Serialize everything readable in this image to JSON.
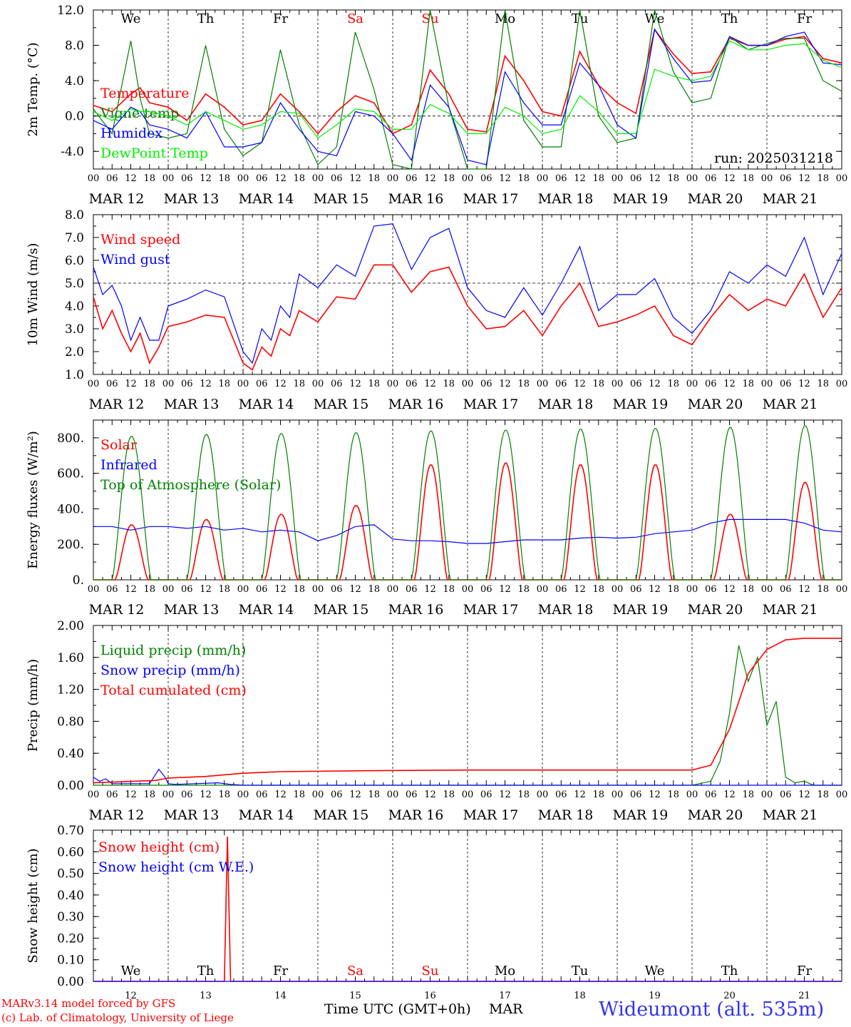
{
  "run_label": "run: 2025031218",
  "hour_ticks": [
    "00",
    "06",
    "12",
    "18"
  ],
  "end_tick": "00",
  "dates": [
    "MAR 12",
    "MAR 13",
    "MAR 14",
    "MAR 15",
    "MAR 16",
    "MAR 17",
    "MAR 18",
    "MAR 19",
    "MAR 20",
    "MAR 21"
  ],
  "weekdays": [
    "We",
    "Th",
    "Fr",
    "Sa",
    "Su",
    "Mo",
    "Tu",
    "We",
    "Th",
    "Fr"
  ],
  "weekday_colors": [
    "#000000",
    "#000000",
    "#000000",
    "#ff0000",
    "#ff0000",
    "#000000",
    "#000000",
    "#000000",
    "#000000",
    "#000000"
  ],
  "day_numbers": [
    "12",
    "13",
    "14",
    "15",
    "16",
    "17",
    "18",
    "19",
    "20",
    "21"
  ],
  "colors": {
    "red": "#ff0000",
    "blue": "#0000ff",
    "green": "#008000",
    "lightgreen": "#00ee00",
    "title": "#3333ee"
  },
  "footer": {
    "model": "MARv3.14 model forced by GFS",
    "copyright": "(c) Lab. of Climatology, University of Liege",
    "time_label": "Time UTC (GMT+0h)",
    "month": "MAR",
    "station": "Wideumont (alt. 535m)"
  },
  "chart_data": [
    {
      "type": "line",
      "ylabel": "2m Temp. (°C)",
      "ylim": [
        -6,
        12
      ],
      "yticks": [
        "12.0",
        "8.0",
        "4.0",
        "0.0",
        "-4.0"
      ],
      "ytick_values": [
        12,
        8,
        4,
        0,
        -4
      ],
      "ref_line": 0,
      "x_unit": "hours since MAR 12 00 UTC",
      "series": [
        {
          "name": "Temperature",
          "color": "#ff0000",
          "x": [
            0,
            6,
            12,
            15,
            18,
            24,
            30,
            36,
            42,
            48,
            54,
            60,
            66,
            72,
            78,
            84,
            90,
            96,
            102,
            108,
            114,
            120,
            126,
            132,
            138,
            144,
            150,
            156,
            162,
            168,
            174,
            180,
            186,
            192,
            198,
            204,
            210,
            216,
            222,
            228,
            234,
            240
          ],
          "y": [
            1.2,
            0.5,
            2.5,
            3.2,
            1.5,
            1.0,
            -0.5,
            2.5,
            1.0,
            -1.0,
            -0.5,
            2.5,
            0.5,
            -2.0,
            0.5,
            2.3,
            1.5,
            -2.0,
            -1.0,
            5.2,
            2.5,
            -1.5,
            -1.8,
            6.8,
            4.0,
            0.5,
            0.0,
            7.3,
            3.5,
            1.5,
            0.3,
            9.8,
            7.0,
            4.8,
            5.0,
            8.8,
            8.0,
            8.0,
            8.7,
            9.0,
            6.5,
            6.0
          ]
        },
        {
          "name": "Vigne temp",
          "color": "#008000",
          "x": [
            0,
            6,
            12,
            15,
            18,
            24,
            30,
            36,
            42,
            48,
            54,
            60,
            66,
            72,
            78,
            84,
            90,
            96,
            102,
            108,
            114,
            120,
            126,
            132,
            138,
            144,
            150,
            156,
            162,
            168,
            174,
            180,
            186,
            192,
            198,
            204,
            210,
            216,
            222,
            228,
            234,
            240
          ],
          "y": [
            0.8,
            -2.0,
            8.5,
            2.0,
            -2.0,
            -2.5,
            -2.0,
            8.0,
            -1.5,
            -4.5,
            -3.0,
            7.5,
            -1.0,
            -5.5,
            -3.5,
            9.5,
            3.0,
            -5.5,
            -6.0,
            12.0,
            1.0,
            -6.0,
            -6.0,
            12.0,
            -0.5,
            -3.5,
            -3.5,
            12.0,
            0.0,
            -3.0,
            -2.5,
            12.0,
            5.0,
            1.5,
            2.0,
            9.0,
            7.5,
            8.2,
            8.8,
            8.8,
            4.0,
            2.8
          ]
        },
        {
          "name": "Humidex",
          "color": "#0000ff",
          "x": [
            0,
            6,
            12,
            15,
            18,
            24,
            30,
            36,
            42,
            48,
            54,
            60,
            66,
            72,
            78,
            84,
            90,
            96,
            102,
            108,
            114,
            120,
            126,
            132,
            138,
            144,
            150,
            156,
            162,
            168,
            174,
            180,
            186,
            192,
            198,
            204,
            210,
            216,
            222,
            228,
            234,
            240
          ],
          "y": [
            -0.5,
            -1.5,
            1.0,
            0.5,
            -1.0,
            -1.5,
            -2.5,
            0.5,
            -3.5,
            -3.5,
            -3.0,
            1.5,
            -1.5,
            -4.0,
            -4.5,
            0.5,
            0.0,
            -2.0,
            -5.0,
            3.5,
            1.0,
            -5.0,
            -5.5,
            5.0,
            1.5,
            -1.0,
            -1.0,
            6.0,
            3.5,
            -1.0,
            -2.5,
            9.8,
            6.5,
            3.8,
            4.0,
            9.0,
            8.0,
            8.0,
            9.0,
            9.5,
            6.0,
            5.8
          ]
        },
        {
          "name": "DewPoint Temp",
          "color": "#00ee00",
          "x": [
            0,
            6,
            12,
            15,
            18,
            24,
            30,
            36,
            42,
            48,
            54,
            60,
            66,
            72,
            78,
            84,
            90,
            96,
            102,
            108,
            114,
            120,
            126,
            132,
            138,
            144,
            150,
            156,
            162,
            168,
            174,
            180,
            186,
            192,
            198,
            204,
            210,
            216,
            222,
            228,
            234,
            240
          ],
          "y": [
            0.5,
            -0.5,
            0.8,
            0.5,
            0.5,
            0.0,
            -1.0,
            0.5,
            -0.5,
            -1.5,
            -1.0,
            0.5,
            0.3,
            -2.5,
            -1.0,
            0.8,
            0.5,
            -1.5,
            -1.5,
            1.3,
            0.3,
            -2.0,
            -2.0,
            1.0,
            0.0,
            -2.0,
            -1.5,
            2.3,
            0.5,
            -2.0,
            -2.0,
            5.3,
            4.5,
            4.0,
            4.5,
            8.5,
            7.5,
            7.5,
            8.0,
            8.2,
            6.3,
            5.5
          ]
        }
      ]
    },
    {
      "type": "line",
      "ylabel": "10m Wind (m/s)",
      "ylim": [
        1,
        8
      ],
      "yticks": [
        "8.0",
        "7.0",
        "6.0",
        "5.0",
        "4.0",
        "3.0",
        "2.0",
        "1.0"
      ],
      "ytick_values": [
        8,
        7,
        6,
        5,
        4,
        3,
        2,
        1
      ],
      "ref_line": 5,
      "x_unit": "hours since MAR 12 00 UTC",
      "series": [
        {
          "name": "Wind speed",
          "color": "#ff0000",
          "x": [
            0,
            3,
            6,
            9,
            12,
            15,
            18,
            21,
            24,
            30,
            36,
            42,
            48,
            51,
            54,
            57,
            60,
            63,
            66,
            72,
            78,
            84,
            90,
            96,
            102,
            108,
            114,
            120,
            126,
            132,
            138,
            144,
            150,
            156,
            162,
            168,
            174,
            180,
            186,
            192,
            198,
            204,
            210,
            216,
            222,
            228,
            234,
            240
          ],
          "y": [
            4.4,
            3.0,
            3.8,
            2.8,
            2.0,
            2.8,
            1.5,
            2.2,
            3.1,
            3.3,
            3.6,
            3.5,
            1.5,
            1.2,
            2.2,
            1.8,
            3.0,
            2.7,
            3.8,
            3.3,
            4.4,
            4.3,
            5.8,
            5.8,
            4.6,
            5.5,
            5.7,
            4.0,
            3.0,
            3.1,
            3.8,
            2.7,
            4.0,
            5.0,
            3.1,
            3.3,
            3.6,
            4.0,
            2.7,
            2.3,
            3.5,
            4.5,
            3.8,
            4.3,
            4.0,
            5.4,
            3.5,
            4.8
          ]
        },
        {
          "name": "Wind gust",
          "color": "#0000ff",
          "x": [
            0,
            3,
            6,
            9,
            12,
            15,
            18,
            21,
            24,
            30,
            36,
            42,
            48,
            51,
            54,
            57,
            60,
            63,
            66,
            72,
            78,
            84,
            90,
            96,
            102,
            108,
            114,
            120,
            126,
            132,
            138,
            144,
            150,
            156,
            162,
            168,
            174,
            180,
            186,
            192,
            198,
            204,
            210,
            216,
            222,
            228,
            234,
            240
          ],
          "y": [
            5.7,
            4.5,
            4.9,
            4.0,
            2.5,
            3.5,
            2.5,
            2.5,
            4.0,
            4.3,
            4.7,
            4.4,
            2.0,
            1.5,
            3.0,
            2.5,
            4.0,
            3.5,
            5.4,
            4.8,
            5.8,
            5.3,
            7.5,
            7.6,
            5.6,
            7.0,
            7.4,
            4.8,
            3.8,
            3.5,
            4.8,
            3.6,
            5.0,
            6.6,
            3.8,
            4.5,
            4.5,
            5.2,
            3.5,
            2.8,
            3.8,
            5.5,
            5.0,
            5.8,
            5.3,
            7.0,
            4.5,
            6.3
          ]
        }
      ]
    },
    {
      "type": "line",
      "ylabel": "Energy fluxes (W/m²)",
      "ylim": [
        0,
        900
      ],
      "yticks": [
        "800.",
        "600.",
        "400.",
        "200.",
        "0."
      ],
      "ytick_values": [
        800,
        600,
        400,
        200,
        0
      ],
      "x_unit": "hours since MAR 12 00 UTC",
      "series": [
        {
          "name": "Solar",
          "color": "#ff0000",
          "daily_peaks": [
            310,
            340,
            370,
            420,
            650,
            660,
            650,
            650,
            370,
            550
          ]
        },
        {
          "name": "Infrared",
          "color": "#0000ff",
          "x": [
            0,
            6,
            12,
            18,
            24,
            30,
            36,
            42,
            48,
            54,
            60,
            66,
            72,
            78,
            84,
            90,
            96,
            102,
            108,
            114,
            120,
            126,
            132,
            138,
            144,
            150,
            156,
            162,
            168,
            174,
            180,
            186,
            192,
            198,
            204,
            210,
            216,
            222,
            228,
            234,
            240
          ],
          "y": [
            300,
            300,
            280,
            300,
            300,
            290,
            300,
            280,
            290,
            270,
            280,
            270,
            220,
            250,
            300,
            310,
            230,
            220,
            220,
            215,
            205,
            205,
            215,
            225,
            225,
            225,
            235,
            240,
            235,
            240,
            260,
            270,
            280,
            320,
            340,
            340,
            340,
            340,
            320,
            280,
            270
          ]
        },
        {
          "name": "Top of Atmosphere (Solar)",
          "color": "#008000",
          "daily_peaks": [
            810,
            820,
            825,
            830,
            840,
            845,
            850,
            855,
            860,
            870
          ]
        }
      ]
    },
    {
      "type": "line",
      "ylabel": "Precip (mm/h)",
      "ylim": [
        0,
        2
      ],
      "yticks": [
        "2.00",
        "1.60",
        "1.20",
        "0.80",
        "0.40",
        "0.00"
      ],
      "ytick_values": [
        2,
        1.6,
        1.2,
        0.8,
        0.4,
        0
      ],
      "x_unit": "hours since MAR 12 00 UTC",
      "series": [
        {
          "name": "Liquid precip (mm/h)",
          "color": "#008000",
          "x": [
            0,
            192,
            198,
            201,
            204,
            207,
            210,
            213,
            216,
            219,
            222,
            225,
            228,
            231,
            240
          ],
          "y": [
            0,
            0,
            0.05,
            0.3,
            0.9,
            1.75,
            1.3,
            1.6,
            0.75,
            1.05,
            0.1,
            0.03,
            0.05,
            0,
            0
          ]
        },
        {
          "name": "Snow precip (mm/h)",
          "color": "#0000ff",
          "x": [
            0,
            2,
            4,
            6,
            18,
            21,
            23,
            24,
            26,
            40,
            44,
            48,
            96,
            240
          ],
          "y": [
            0.1,
            0.05,
            0.08,
            0.02,
            0.02,
            0.2,
            0.1,
            0.02,
            0.01,
            0.03,
            0.01,
            0,
            0,
            0
          ]
        },
        {
          "name": "Total cumulated (cm)",
          "color": "#ff0000",
          "x": [
            0,
            20,
            24,
            36,
            48,
            60,
            84,
            120,
            168,
            192,
            198,
            204,
            210,
            216,
            222,
            228,
            234,
            240
          ],
          "y": [
            0.03,
            0.06,
            0.09,
            0.11,
            0.15,
            0.17,
            0.18,
            0.19,
            0.19,
            0.19,
            0.25,
            0.7,
            1.4,
            1.7,
            1.82,
            1.84,
            1.84,
            1.84
          ]
        }
      ]
    },
    {
      "type": "line",
      "ylabel": "Snow height (cm)",
      "ylim": [
        0,
        0.7
      ],
      "yticks": [
        "0.70",
        "0.60",
        "0.50",
        "0.40",
        "0.30",
        "0.20",
        "0.10",
        "0.00"
      ],
      "ytick_values": [
        0.7,
        0.6,
        0.5,
        0.4,
        0.3,
        0.2,
        0.1,
        0
      ],
      "x_unit": "hours since MAR 12 00 UTC",
      "series": [
        {
          "name": "Snow height (cm)",
          "color": "#ff0000",
          "x": [
            0,
            42,
            43,
            44,
            240
          ],
          "y": [
            0,
            0,
            0.67,
            0,
            0
          ]
        },
        {
          "name": "Snow height (cm W.E.)",
          "color": "#0000ff",
          "x": [
            0,
            240
          ],
          "y": [
            0,
            0
          ]
        }
      ]
    }
  ]
}
